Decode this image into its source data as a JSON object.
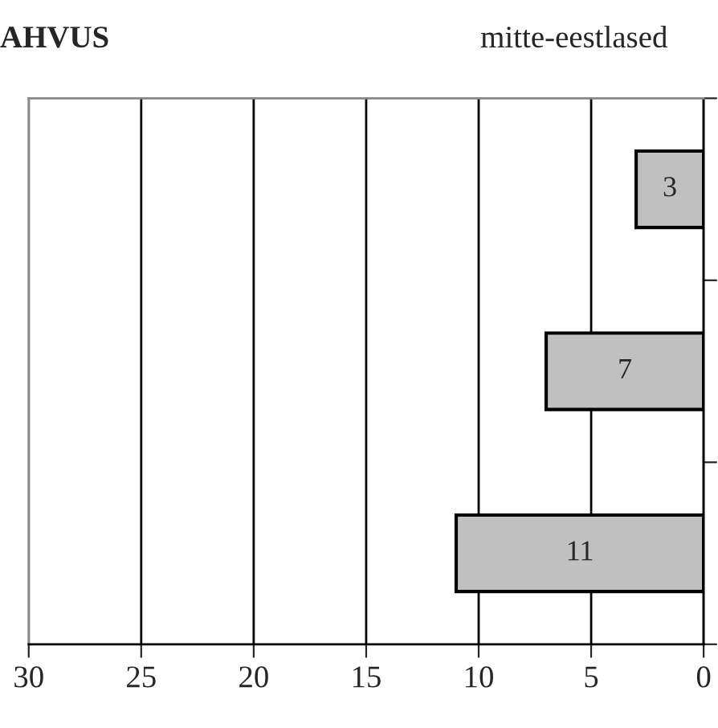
{
  "chart_data": {
    "type": "bar",
    "orientation": "horizontal",
    "title": "AHVUS",
    "subtitle": "mitte-eestlased",
    "categories": [
      null,
      null,
      null
    ],
    "values": [
      3,
      7,
      11
    ],
    "color": "#c0c0c0",
    "xlim": [
      30,
      0
    ],
    "xticks": [
      30,
      25,
      20,
      15,
      10,
      5,
      0
    ],
    "grid": "x",
    "tick_labels": "x",
    "data_labels": true
  }
}
